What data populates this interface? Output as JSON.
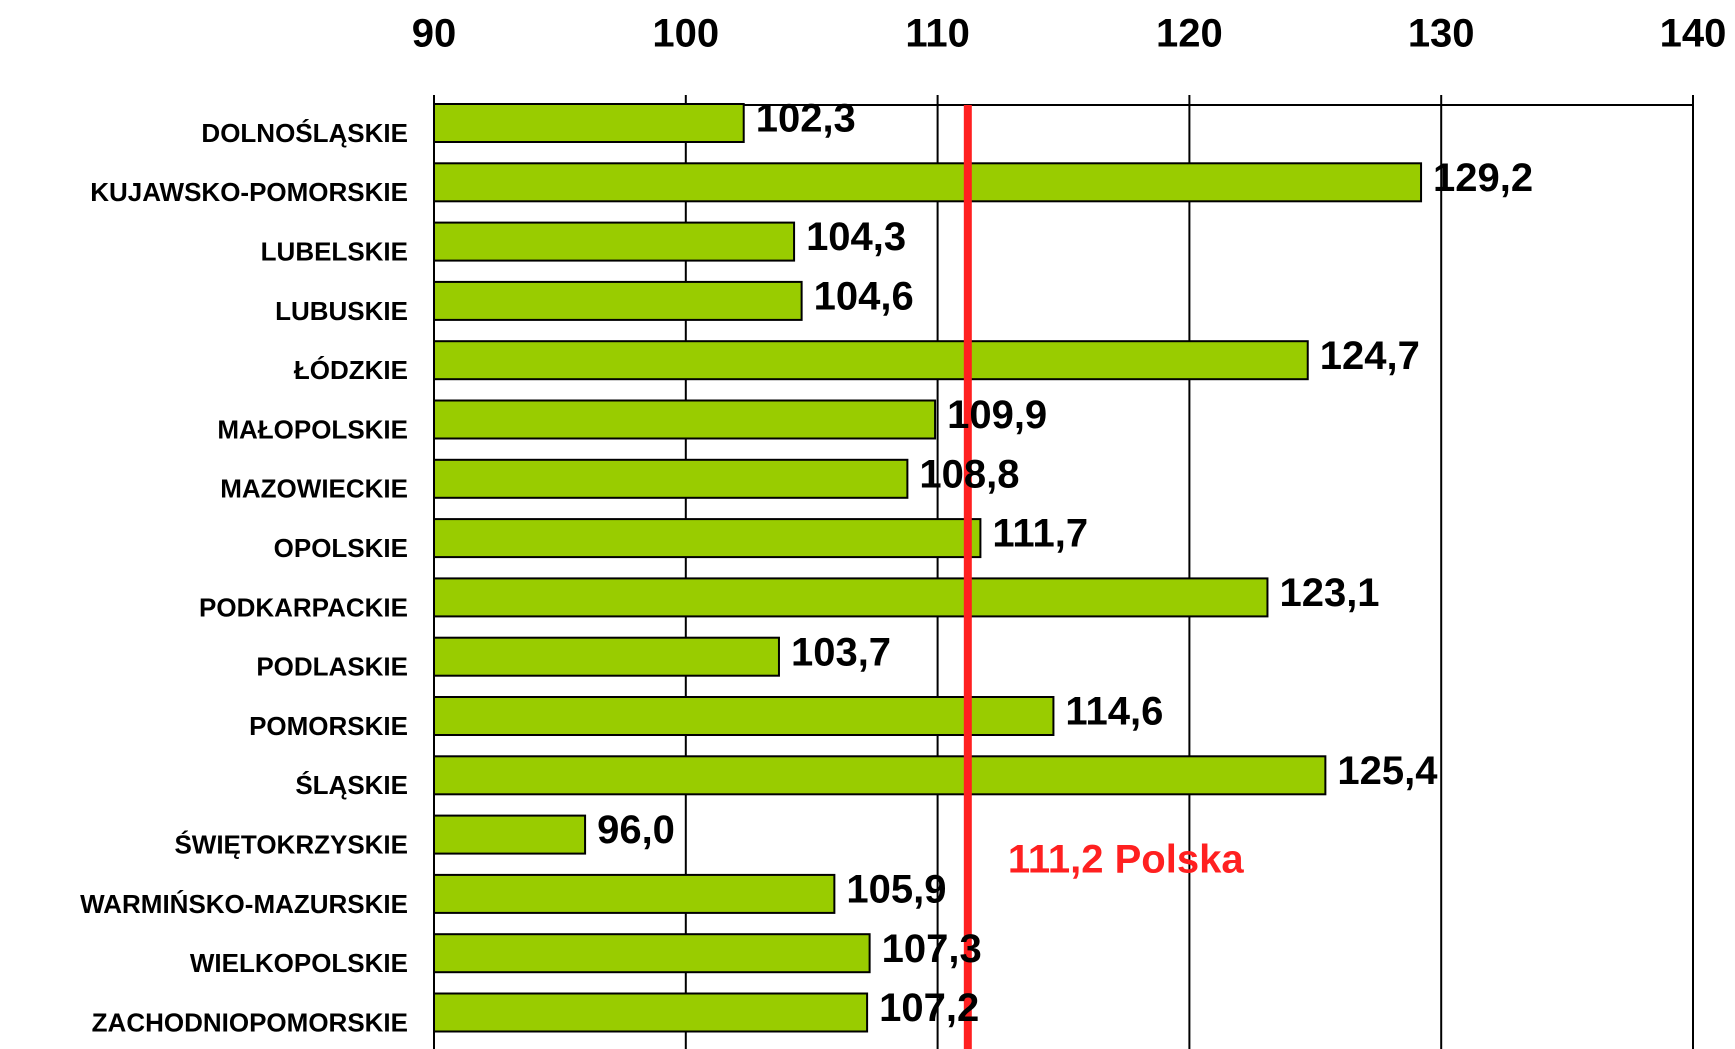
{
  "chart_data": {
    "type": "bar",
    "orientation": "horizontal",
    "categories": [
      "DOLNOŚLĄSKIE",
      "KUJAWSKO-POMORSKIE",
      "LUBELSKIE",
      "LUBUSKIE",
      "ŁÓDZKIE",
      "MAŁOPOLSKIE",
      "MAZOWIECKIE",
      "OPOLSKIE",
      "PODKARPACKIE",
      "PODLASKIE",
      "POMORSKIE",
      "ŚLĄSKIE",
      "ŚWIĘTOKRZYSKIE",
      "WARMIŃSKO-MAZURSKIE",
      "WIELKOPOLSKIE",
      "ZACHODNIOPOMORSKIE"
    ],
    "values": [
      102.3,
      129.2,
      104.3,
      104.6,
      124.7,
      109.9,
      108.8,
      111.7,
      123.1,
      103.7,
      114.6,
      125.4,
      96.0,
      105.9,
      107.3,
      107.2
    ],
    "value_labels": [
      "102,3",
      "129,2",
      "104,3",
      "104,6",
      "124,7",
      "109,9",
      "108,8",
      "111,7",
      "123,1",
      "103,7",
      "114,6",
      "125,4",
      "96,0",
      "105,9",
      "107,3",
      "107,2"
    ],
    "color": "#99cc00",
    "xlim": [
      90,
      140
    ],
    "xticks": [
      90,
      100,
      110,
      120,
      130,
      140
    ],
    "grid": true,
    "reference_line": {
      "value": 111.2,
      "label": "111,2 Polska",
      "color": "#ff2020"
    }
  }
}
